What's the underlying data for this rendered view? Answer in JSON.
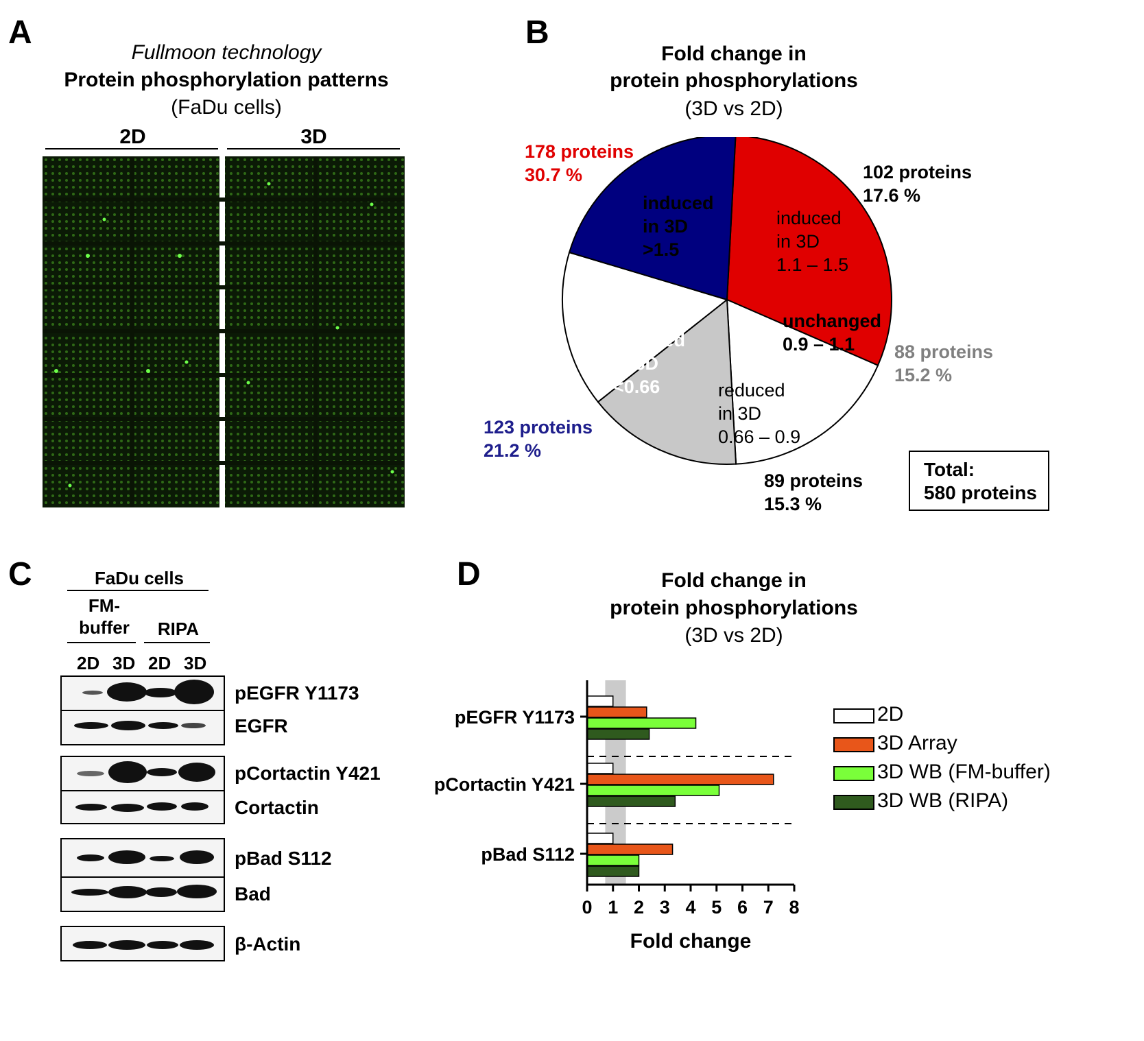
{
  "panel_a": {
    "letter": "A",
    "subtitle_italic": "Fullmoon technology",
    "title": "Protein phosphorylation patterns",
    "cells": "(FaDu cells)",
    "col_2d": "2D",
    "col_3d": "3D"
  },
  "panel_b": {
    "letter": "B",
    "title_line1": "Fold change in",
    "title_line2": "protein phosphorylations",
    "title_line3": "(3D vs 2D)",
    "total_label": "Total:",
    "total_value": "580 proteins"
  },
  "panel_c": {
    "letter": "C",
    "header": "FaDu cells",
    "buffer1_line1": "FM-",
    "buffer1_line2": "buffer",
    "buffer2": "RIPA",
    "lanes": [
      "2D",
      "3D",
      "2D",
      "3D"
    ],
    "blot_labels": [
      "pEGFR Y1173",
      "EGFR",
      "pCortactin Y421",
      "Cortactin",
      "pBad S112",
      "Bad",
      "β-Actin"
    ]
  },
  "panel_d": {
    "letter": "D",
    "title_line1": "Fold change in",
    "title_line2": "protein phosphorylations",
    "title_line3": "(3D vs 2D)"
  },
  "chart_data": [
    {
      "type": "pie",
      "slices": [
        {
          "category": "induced in 3D >1.5",
          "count_label": "178 proteins",
          "percent_label": "30.7 %",
          "inner_label": [
            "induced",
            "in 3D",
            ">1.5"
          ],
          "value": 30.7,
          "color": "#e00000"
        },
        {
          "category": "induced in 3D 1.1 – 1.5",
          "count_label": "102 proteins",
          "percent_label": "17.6 %",
          "inner_label": [
            "induced",
            "in 3D",
            "1.1 – 1.5"
          ],
          "value": 17.6,
          "color": "#ffffff"
        },
        {
          "category": "unchanged 0.9 – 1.1",
          "count_label": "88 proteins",
          "percent_label": "15.2 %",
          "inner_label": [
            "unchanged",
            "0.9 – 1.1"
          ],
          "value": 15.2,
          "color": "#c8c8c8"
        },
        {
          "category": "reduced in 3D 0.66 – 0.9",
          "count_label": "89 proteins",
          "percent_label": "15.3 %",
          "inner_label": [
            "reduced",
            "in 3D",
            "0.66 – 0.9"
          ],
          "value": 15.3,
          "color": "#ffffff"
        },
        {
          "category": "reduced in 3D <0.66",
          "count_label": "123 proteins",
          "percent_label": "21.2 %",
          "inner_label": [
            "reduced",
            "in 3D",
            "<0.66"
          ],
          "value": 21.2,
          "color": "#00007f"
        }
      ]
    },
    {
      "type": "bar",
      "orientation": "horizontal",
      "categories": [
        "pEGFR Y1173",
        "pCortactin Y421",
        "pBad S112"
      ],
      "series": [
        {
          "name": "2D",
          "values": [
            1,
            1,
            1
          ],
          "color": "#ffffff"
        },
        {
          "name": "3D Array",
          "values": [
            2.3,
            7.2,
            3.3
          ],
          "color": "#e8561a"
        },
        {
          "name": "3D WB (FM-buffer)",
          "values": [
            4.2,
            5.1,
            2.0
          ],
          "color": "#7aff3a"
        },
        {
          "name": "3D WB (RIPA)",
          "values": [
            2.4,
            3.4,
            2.0
          ],
          "color": "#2f5a1e"
        }
      ],
      "xlabel": "Fold change",
      "xlim": [
        0,
        8
      ],
      "xticks": [
        "0",
        "1",
        "2",
        "3",
        "4",
        "5",
        "6",
        "7",
        "8"
      ],
      "shaded_band": [
        0.7,
        1.5
      ]
    }
  ]
}
